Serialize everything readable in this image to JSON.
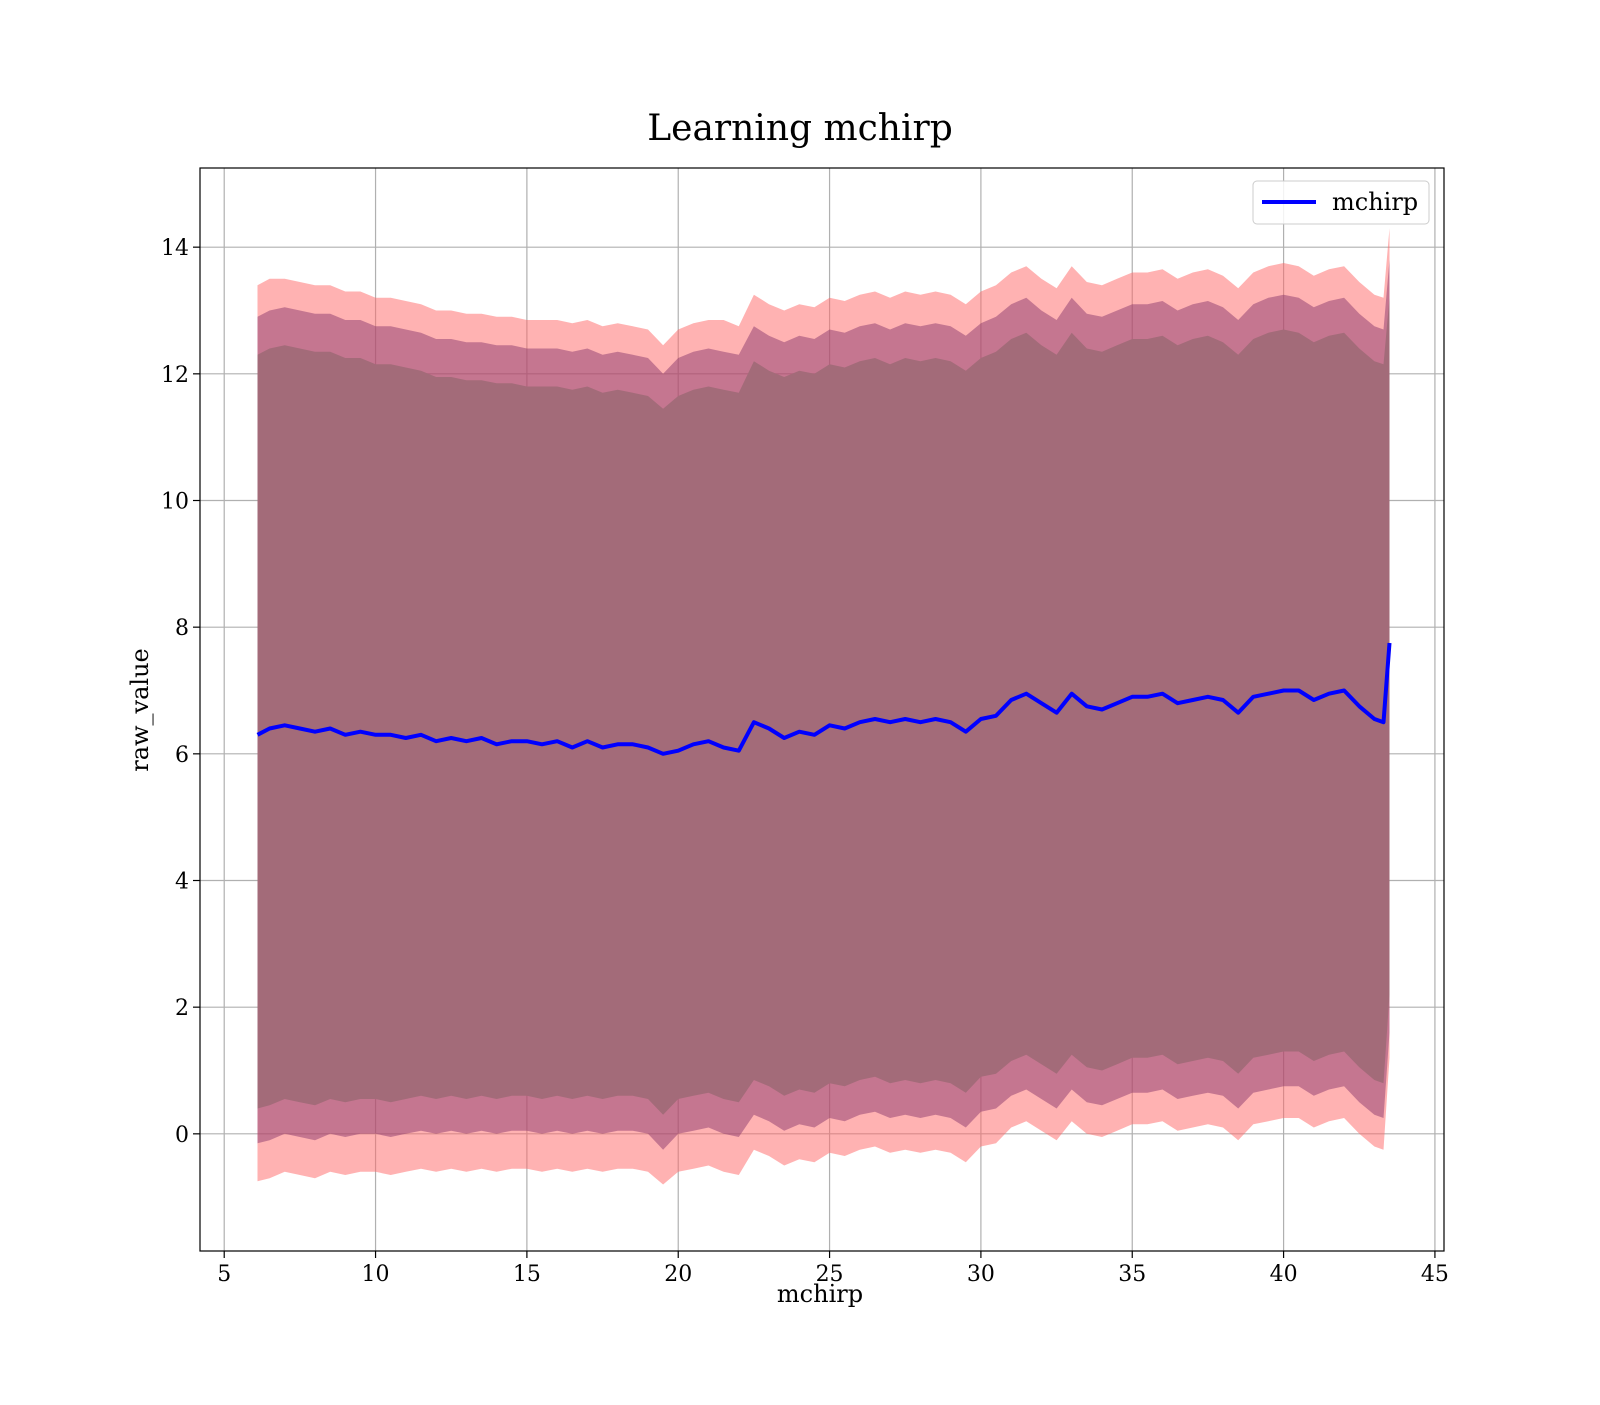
{
  "chart_data": {
    "type": "line",
    "title": "Learning mchirp",
    "xlabel": "mchirp",
    "ylabel": "raw_value",
    "xlim": [
      4.2,
      45.3
    ],
    "ylim": [
      -1.85,
      15.25
    ],
    "xticks": [
      5,
      10,
      15,
      20,
      25,
      30,
      35,
      40,
      45
    ],
    "yticks": [
      0,
      2,
      4,
      6,
      8,
      10,
      12,
      14
    ],
    "grid": true,
    "legend_position": "top-right",
    "series": [
      {
        "name": "mchirp",
        "color": "#0000ff",
        "x": [
          6.1,
          6.5,
          7,
          7.5,
          8,
          8.5,
          9,
          9.5,
          10,
          10.5,
          11,
          11.5,
          12,
          12.5,
          13,
          13.5,
          14,
          14.5,
          15,
          15.5,
          16,
          16.5,
          17,
          17.5,
          18,
          18.5,
          19,
          19.5,
          20,
          20.5,
          21,
          21.5,
          22,
          22.5,
          23,
          23.5,
          24,
          24.5,
          25,
          25.5,
          26,
          26.5,
          27,
          27.5,
          28,
          28.5,
          29,
          29.5,
          30,
          30.5,
          31,
          31.5,
          32,
          32.5,
          33,
          33.5,
          34,
          34.5,
          35,
          35.5,
          36,
          36.5,
          37,
          37.5,
          38,
          38.5,
          39,
          39.5,
          40,
          40.5,
          41,
          41.5,
          42,
          42.5,
          43,
          43.3,
          43.5
        ],
        "y": [
          6.3,
          6.4,
          6.45,
          6.4,
          6.35,
          6.4,
          6.3,
          6.35,
          6.3,
          6.3,
          6.25,
          6.3,
          6.2,
          6.25,
          6.2,
          6.25,
          6.15,
          6.2,
          6.2,
          6.15,
          6.2,
          6.1,
          6.2,
          6.1,
          6.15,
          6.15,
          6.1,
          6.0,
          6.05,
          6.15,
          6.2,
          6.1,
          6.05,
          6.5,
          6.4,
          6.25,
          6.35,
          6.3,
          6.45,
          6.4,
          6.5,
          6.55,
          6.5,
          6.55,
          6.5,
          6.55,
          6.5,
          6.35,
          6.55,
          6.6,
          6.85,
          6.95,
          6.8,
          6.65,
          6.95,
          6.75,
          6.7,
          6.8,
          6.9,
          6.9,
          6.95,
          6.8,
          6.85,
          6.9,
          6.85,
          6.65,
          6.9,
          6.95,
          7.0,
          7.0,
          6.85,
          6.95,
          7.0,
          6.75,
          6.55,
          6.5,
          7.75
        ]
      }
    ],
    "bands": [
      {
        "name": "",
        "color": "#ff6666",
        "opacity": 0.5,
        "x": [
          6.1,
          6.5,
          7,
          7.5,
          8,
          8.5,
          9,
          9.5,
          10,
          10.5,
          11,
          11.5,
          12,
          12.5,
          13,
          13.5,
          14,
          14.5,
          15,
          15.5,
          16,
          16.5,
          17,
          17.5,
          18,
          18.5,
          19,
          19.5,
          20,
          20.5,
          21,
          21.5,
          22,
          22.5,
          23,
          23.5,
          24,
          24.5,
          25,
          25.5,
          26,
          26.5,
          27,
          27.5,
          28,
          28.5,
          29,
          29.5,
          30,
          30.5,
          31,
          31.5,
          32,
          32.5,
          33,
          33.5,
          34,
          34.5,
          35,
          35.5,
          36,
          36.5,
          37,
          37.5,
          38,
          38.5,
          39,
          39.5,
          40,
          40.5,
          41,
          41.5,
          42,
          42.5,
          43,
          43.3,
          43.5
        ],
        "upper": [
          13.4,
          13.5,
          13.5,
          13.45,
          13.4,
          13.4,
          13.3,
          13.3,
          13.2,
          13.2,
          13.15,
          13.1,
          13.0,
          13.0,
          12.95,
          12.95,
          12.9,
          12.9,
          12.85,
          12.85,
          12.85,
          12.8,
          12.85,
          12.75,
          12.8,
          12.75,
          12.7,
          12.45,
          12.7,
          12.8,
          12.85,
          12.85,
          12.75,
          13.25,
          13.1,
          13.0,
          13.1,
          13.05,
          13.2,
          13.15,
          13.25,
          13.3,
          13.2,
          13.3,
          13.25,
          13.3,
          13.25,
          13.1,
          13.3,
          13.4,
          13.6,
          13.7,
          13.5,
          13.35,
          13.7,
          13.45,
          13.4,
          13.5,
          13.6,
          13.6,
          13.65,
          13.5,
          13.6,
          13.65,
          13.55,
          13.35,
          13.6,
          13.7,
          13.75,
          13.7,
          13.55,
          13.65,
          13.7,
          13.45,
          13.25,
          13.2,
          14.3
        ],
        "lower": [
          -0.75,
          -0.7,
          -0.6,
          -0.65,
          -0.7,
          -0.6,
          -0.65,
          -0.6,
          -0.6,
          -0.65,
          -0.6,
          -0.55,
          -0.6,
          -0.55,
          -0.6,
          -0.55,
          -0.6,
          -0.55,
          -0.55,
          -0.6,
          -0.55,
          -0.6,
          -0.55,
          -0.6,
          -0.55,
          -0.55,
          -0.6,
          -0.8,
          -0.6,
          -0.55,
          -0.5,
          -0.6,
          -0.65,
          -0.25,
          -0.35,
          -0.5,
          -0.4,
          -0.45,
          -0.3,
          -0.35,
          -0.25,
          -0.2,
          -0.3,
          -0.25,
          -0.3,
          -0.25,
          -0.3,
          -0.45,
          -0.2,
          -0.15,
          0.1,
          0.2,
          0.05,
          -0.1,
          0.2,
          0.0,
          -0.05,
          0.05,
          0.15,
          0.15,
          0.2,
          0.05,
          0.1,
          0.15,
          0.1,
          -0.1,
          0.15,
          0.2,
          0.25,
          0.25,
          0.1,
          0.2,
          0.25,
          0.0,
          -0.2,
          -0.25,
          1.2
        ]
      },
      {
        "name": "",
        "color": "#8b3a6e",
        "opacity": 0.5,
        "x": [
          6.1,
          6.5,
          7,
          7.5,
          8,
          8.5,
          9,
          9.5,
          10,
          10.5,
          11,
          11.5,
          12,
          12.5,
          13,
          13.5,
          14,
          14.5,
          15,
          15.5,
          16,
          16.5,
          17,
          17.5,
          18,
          18.5,
          19,
          19.5,
          20,
          20.5,
          21,
          21.5,
          22,
          22.5,
          23,
          23.5,
          24,
          24.5,
          25,
          25.5,
          26,
          26.5,
          27,
          27.5,
          28,
          28.5,
          29,
          29.5,
          30,
          30.5,
          31,
          31.5,
          32,
          32.5,
          33,
          33.5,
          34,
          34.5,
          35,
          35.5,
          36,
          36.5,
          37,
          37.5,
          38,
          38.5,
          39,
          39.5,
          40,
          40.5,
          41,
          41.5,
          42,
          42.5,
          43,
          43.3,
          43.5
        ],
        "upper": [
          12.9,
          13.0,
          13.05,
          13.0,
          12.95,
          12.95,
          12.85,
          12.85,
          12.75,
          12.75,
          12.7,
          12.65,
          12.55,
          12.55,
          12.5,
          12.5,
          12.45,
          12.45,
          12.4,
          12.4,
          12.4,
          12.35,
          12.4,
          12.3,
          12.35,
          12.3,
          12.25,
          12.0,
          12.25,
          12.35,
          12.4,
          12.35,
          12.3,
          12.75,
          12.6,
          12.5,
          12.6,
          12.55,
          12.7,
          12.65,
          12.75,
          12.8,
          12.7,
          12.8,
          12.75,
          12.8,
          12.75,
          12.6,
          12.8,
          12.9,
          13.1,
          13.2,
          13.0,
          12.85,
          13.2,
          12.95,
          12.9,
          13.0,
          13.1,
          13.1,
          13.15,
          13.0,
          13.1,
          13.15,
          13.05,
          12.85,
          13.1,
          13.2,
          13.25,
          13.2,
          13.05,
          13.15,
          13.2,
          12.95,
          12.75,
          12.7,
          13.8
        ],
        "lower": [
          -0.15,
          -0.1,
          0.0,
          -0.05,
          -0.1,
          0.0,
          -0.05,
          0.0,
          0.0,
          -0.05,
          0.0,
          0.05,
          0.0,
          0.05,
          0.0,
          0.05,
          0.0,
          0.05,
          0.05,
          0.0,
          0.05,
          0.0,
          0.05,
          0.0,
          0.05,
          0.05,
          0.0,
          -0.25,
          0.0,
          0.05,
          0.1,
          0.0,
          -0.05,
          0.3,
          0.2,
          0.05,
          0.15,
          0.1,
          0.25,
          0.2,
          0.3,
          0.35,
          0.25,
          0.3,
          0.25,
          0.3,
          0.25,
          0.1,
          0.35,
          0.4,
          0.6,
          0.7,
          0.55,
          0.4,
          0.7,
          0.5,
          0.45,
          0.55,
          0.65,
          0.65,
          0.7,
          0.55,
          0.6,
          0.65,
          0.6,
          0.4,
          0.65,
          0.7,
          0.75,
          0.75,
          0.6,
          0.7,
          0.75,
          0.5,
          0.3,
          0.25,
          1.6
        ]
      },
      {
        "name": "",
        "color": "#a36b79",
        "opacity": 1.0,
        "x": [
          6.1,
          6.5,
          7,
          7.5,
          8,
          8.5,
          9,
          9.5,
          10,
          10.5,
          11,
          11.5,
          12,
          12.5,
          13,
          13.5,
          14,
          14.5,
          15,
          15.5,
          16,
          16.5,
          17,
          17.5,
          18,
          18.5,
          19,
          19.5,
          20,
          20.5,
          21,
          21.5,
          22,
          22.5,
          23,
          23.5,
          24,
          24.5,
          25,
          25.5,
          26,
          26.5,
          27,
          27.5,
          28,
          28.5,
          29,
          29.5,
          30,
          30.5,
          31,
          31.5,
          32,
          32.5,
          33,
          33.5,
          34,
          34.5,
          35,
          35.5,
          36,
          36.5,
          37,
          37.5,
          38,
          38.5,
          39,
          39.5,
          40,
          40.5,
          41,
          41.5,
          42,
          42.5,
          43,
          43.3,
          43.5
        ],
        "upper": [
          12.3,
          12.4,
          12.45,
          12.4,
          12.35,
          12.35,
          12.25,
          12.25,
          12.15,
          12.15,
          12.1,
          12.05,
          11.95,
          11.95,
          11.9,
          11.9,
          11.85,
          11.85,
          11.8,
          11.8,
          11.8,
          11.75,
          11.8,
          11.7,
          11.75,
          11.7,
          11.65,
          11.45,
          11.65,
          11.75,
          11.8,
          11.75,
          11.7,
          12.2,
          12.05,
          11.95,
          12.05,
          12.0,
          12.15,
          12.1,
          12.2,
          12.25,
          12.15,
          12.25,
          12.2,
          12.25,
          12.2,
          12.05,
          12.25,
          12.35,
          12.55,
          12.65,
          12.45,
          12.3,
          12.65,
          12.4,
          12.35,
          12.45,
          12.55,
          12.55,
          12.6,
          12.45,
          12.55,
          12.6,
          12.5,
          12.3,
          12.55,
          12.65,
          12.7,
          12.65,
          12.5,
          12.6,
          12.65,
          12.4,
          12.2,
          12.15,
          13.2
        ],
        "lower": [
          0.4,
          0.45,
          0.55,
          0.5,
          0.45,
          0.55,
          0.5,
          0.55,
          0.55,
          0.5,
          0.55,
          0.6,
          0.55,
          0.6,
          0.55,
          0.6,
          0.55,
          0.6,
          0.6,
          0.55,
          0.6,
          0.55,
          0.6,
          0.55,
          0.6,
          0.6,
          0.55,
          0.3,
          0.55,
          0.6,
          0.65,
          0.55,
          0.5,
          0.85,
          0.75,
          0.6,
          0.7,
          0.65,
          0.8,
          0.75,
          0.85,
          0.9,
          0.8,
          0.85,
          0.8,
          0.85,
          0.8,
          0.65,
          0.9,
          0.95,
          1.15,
          1.25,
          1.1,
          0.95,
          1.25,
          1.05,
          1.0,
          1.1,
          1.2,
          1.2,
          1.25,
          1.1,
          1.15,
          1.2,
          1.15,
          0.95,
          1.2,
          1.25,
          1.3,
          1.3,
          1.15,
          1.25,
          1.3,
          1.05,
          0.85,
          0.8,
          2.2
        ]
      }
    ]
  }
}
